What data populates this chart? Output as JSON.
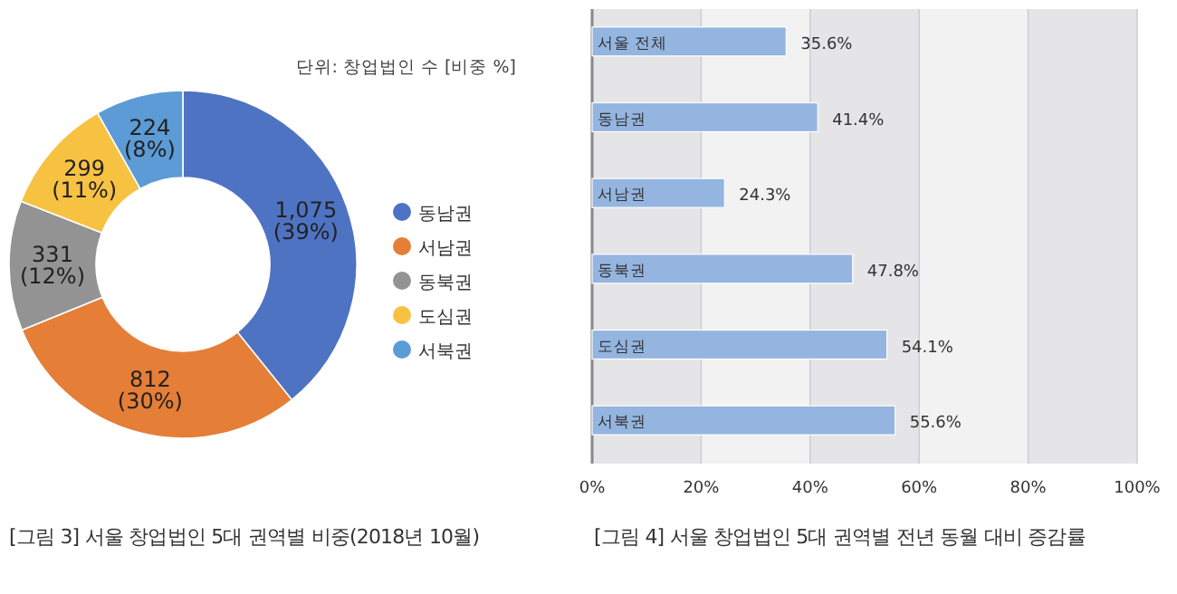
{
  "chart_data": [
    {
      "type": "donut",
      "title": "[그림 3] 서울 창업법인 5대 권역별 비중(2018년 10월)",
      "subtitle": "단위: 창업법인 수 [비중 %]",
      "categories": [
        "동남권",
        "서남권",
        "동북권",
        "도심권",
        "서북권"
      ],
      "values": [
        1075,
        812,
        331,
        299,
        224
      ],
      "value_labels": [
        "1,075 (39%)",
        "812 (30%)",
        "331 (12%)",
        "299 (11%)",
        "224 (8%)"
      ],
      "colors": [
        "#4f73c3",
        "#e57e37",
        "#939393",
        "#f7c242",
        "#5c9bd5"
      ],
      "legend": "right"
    },
    {
      "type": "bar",
      "orientation": "horizontal",
      "title": "[그림 4] 서울 창업법인 5대 권역별 전년 동월 대비 증감률",
      "categories": [
        "서울 전체",
        "동남권",
        "서남권",
        "동북권",
        "도심권",
        "서북권"
      ],
      "values": [
        35.6,
        41.4,
        24.3,
        47.8,
        54.1,
        55.6
      ],
      "value_labels": [
        "35.6%",
        "41.4%",
        "24.3%",
        "47.8%",
        "54.1%",
        "55.6%"
      ],
      "color": "#94b5e0",
      "xlim": [
        0,
        100
      ],
      "xticks": [
        {
          "value": 0,
          "label": "0%"
        },
        {
          "value": 20,
          "label": "20%"
        },
        {
          "value": 40,
          "label": "40%"
        },
        {
          "value": 60,
          "label": "60%"
        },
        {
          "value": 80,
          "label": "80%"
        },
        {
          "value": 100,
          "label": "100%"
        }
      ],
      "grid": "x"
    }
  ]
}
